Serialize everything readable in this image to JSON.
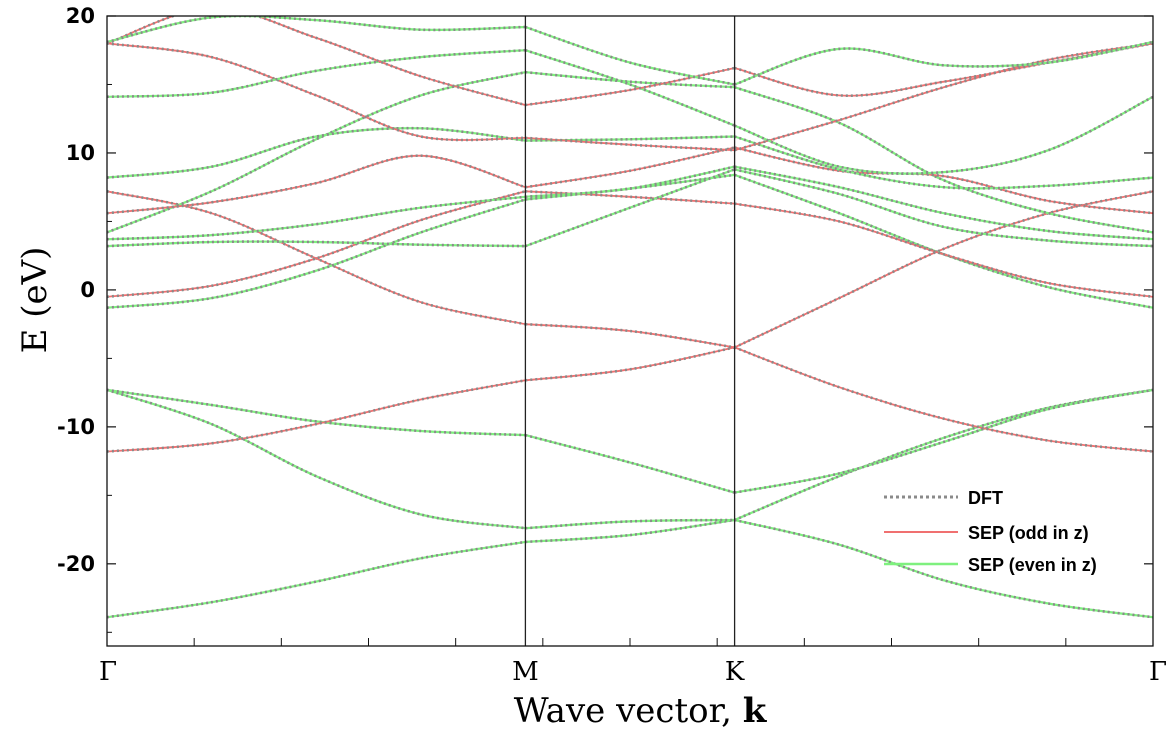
{
  "chart_data": {
    "type": "line",
    "xlabel": "Wave vector, ",
    "xlabel_bold": "k",
    "ylabel": "E (eV)",
    "ylim": [
      -26,
      20
    ],
    "yticks": [
      20,
      10,
      0,
      -10,
      -20
    ],
    "x_positions": [
      0,
      1,
      1.5,
      2.5
    ],
    "x_tick_labels": [
      "Γ",
      "M",
      "K",
      "Γ"
    ],
    "vertical_lines_at": [
      1,
      1.5
    ],
    "grid": false,
    "legend_position": "lower-right",
    "legend": [
      {
        "label": "DFT",
        "style": "dotted",
        "color": "#8a8a8a"
      },
      {
        "label": "SEP (odd in z)",
        "style": "solid",
        "color": "#f07070"
      },
      {
        "label": "SEP (even in  z)",
        "style": "solid",
        "color": "#7ef07e"
      }
    ],
    "series": [
      {
        "parity": "even",
        "x": [
          0,
          0.25,
          0.5,
          0.75,
          1
        ],
        "y": [
          -23.9,
          -22.8,
          -21.3,
          -19.6,
          -18.4
        ]
      },
      {
        "parity": "even",
        "x": [
          1,
          1.25,
          1.5
        ],
        "y": [
          -18.4,
          -17.9,
          -16.8
        ]
      },
      {
        "parity": "even",
        "x": [
          1.5,
          1.75,
          2,
          2.25,
          2.5
        ],
        "y": [
          -16.8,
          -18.6,
          -21.2,
          -22.9,
          -23.9
        ]
      },
      {
        "parity": "even",
        "x": [
          0,
          0.25,
          0.5,
          0.75,
          1
        ],
        "y": [
          -7.3,
          -9.8,
          -13.6,
          -16.4,
          -17.4
        ]
      },
      {
        "parity": "even",
        "x": [
          1,
          1.25,
          1.5
        ],
        "y": [
          -17.4,
          -16.9,
          -16.8
        ]
      },
      {
        "parity": "even",
        "x": [
          1.5,
          1.75,
          2,
          2.25,
          2.5
        ],
        "y": [
          -16.8,
          -13.6,
          -10.8,
          -8.6,
          -7.3
        ]
      },
      {
        "parity": "even",
        "x": [
          0,
          0.25,
          0.5,
          0.75,
          1
        ],
        "y": [
          -7.3,
          -8.4,
          -9.6,
          -10.3,
          -10.6
        ]
      },
      {
        "parity": "even",
        "x": [
          1,
          1.25,
          1.5
        ],
        "y": [
          -10.6,
          -12.6,
          -14.8
        ]
      },
      {
        "parity": "even",
        "x": [
          1.5,
          1.75,
          2,
          2.25,
          2.5
        ],
        "y": [
          -14.8,
          -13.4,
          -11.1,
          -8.7,
          -7.3
        ]
      },
      {
        "parity": "odd",
        "x": [
          0,
          0.25,
          0.5,
          0.75,
          1
        ],
        "y": [
          -11.8,
          -11.2,
          -9.8,
          -8.0,
          -6.6
        ]
      },
      {
        "parity": "odd",
        "x": [
          1,
          1.25,
          1.5
        ],
        "y": [
          -6.6,
          -5.8,
          -4.2
        ]
      },
      {
        "parity": "odd",
        "x": [
          1.5,
          1.75,
          2,
          2.25,
          2.5
        ],
        "y": [
          -4.2,
          -7.1,
          -9.4,
          -11.0,
          -11.8
        ]
      },
      {
        "parity": "odd",
        "x": [
          0,
          0.25,
          0.5,
          0.75,
          1
        ],
        "y": [
          7.2,
          5.6,
          2.3,
          -0.9,
          -2.5
        ]
      },
      {
        "parity": "odd",
        "x": [
          1,
          1.25,
          1.5
        ],
        "y": [
          -2.5,
          -3.0,
          -4.2
        ]
      },
      {
        "parity": "odd",
        "x": [
          1.5,
          1.75,
          2,
          2.25,
          2.5
        ],
        "y": [
          -4.2,
          -0.6,
          3.0,
          5.6,
          7.2
        ]
      },
      {
        "parity": "even",
        "x": [
          0,
          0.25,
          0.5,
          0.75,
          1
        ],
        "y": [
          -1.3,
          -0.6,
          1.4,
          4.2,
          6.6
        ]
      },
      {
        "parity": "even",
        "x": [
          1,
          1.25,
          1.5
        ],
        "y": [
          6.6,
          7.4,
          8.4
        ]
      },
      {
        "parity": "even",
        "x": [
          1.5,
          1.75,
          2,
          2.25,
          2.5
        ],
        "y": [
          8.4,
          5.6,
          2.6,
          0.2,
          -1.3
        ]
      },
      {
        "parity": "odd",
        "x": [
          0,
          0.25,
          0.5,
          0.75,
          1
        ],
        "y": [
          -0.5,
          0.3,
          2.3,
          5.1,
          7.2
        ]
      },
      {
        "parity": "odd",
        "x": [
          1,
          1.25,
          1.5
        ],
        "y": [
          7.2,
          6.8,
          6.3
        ]
      },
      {
        "parity": "odd",
        "x": [
          1.5,
          1.75,
          2,
          2.25,
          2.5
        ],
        "y": [
          6.3,
          5.0,
          2.6,
          0.5,
          -0.5
        ]
      },
      {
        "parity": "even",
        "x": [
          0,
          0.25,
          0.5,
          0.75,
          1
        ],
        "y": [
          3.2,
          3.5,
          3.5,
          3.3,
          3.2
        ]
      },
      {
        "parity": "even",
        "x": [
          1,
          1.25,
          1.5
        ],
        "y": [
          3.2,
          6.0,
          8.8
        ]
      },
      {
        "parity": "even",
        "x": [
          1.5,
          1.75,
          2,
          2.25,
          2.5
        ],
        "y": [
          8.8,
          7.0,
          4.6,
          3.6,
          3.2
        ]
      },
      {
        "parity": "even",
        "x": [
          0,
          0.25,
          0.5,
          0.75,
          1
        ],
        "y": [
          3.7,
          4.0,
          4.8,
          6.0,
          6.8
        ]
      },
      {
        "parity": "even",
        "x": [
          1,
          1.25,
          1.5
        ],
        "y": [
          6.8,
          7.4,
          9.0
        ]
      },
      {
        "parity": "even",
        "x": [
          1.5,
          1.75,
          2,
          2.25,
          2.5
        ],
        "y": [
          9.0,
          7.5,
          5.6,
          4.3,
          3.7
        ]
      },
      {
        "parity": "even",
        "x": [
          0,
          0.25,
          0.5,
          0.75,
          1
        ],
        "y": [
          4.2,
          7.2,
          11.0,
          14.2,
          15.9
        ]
      },
      {
        "parity": "even",
        "x": [
          1,
          1.25,
          1.5
        ],
        "y": [
          15.9,
          15.2,
          14.8
        ]
      },
      {
        "parity": "even",
        "x": [
          1.5,
          1.75,
          2,
          2.25,
          2.5
        ],
        "y": [
          14.8,
          12.2,
          8.0,
          5.6,
          4.2
        ]
      },
      {
        "parity": "odd",
        "x": [
          0,
          0.25,
          0.5,
          0.75,
          1
        ],
        "y": [
          5.6,
          6.4,
          7.8,
          9.8,
          7.5
        ]
      },
      {
        "parity": "odd",
        "x": [
          1,
          1.25,
          1.5
        ],
        "y": [
          7.5,
          8.7,
          10.4
        ]
      },
      {
        "parity": "odd",
        "x": [
          1.5,
          1.75,
          2,
          2.25,
          2.5
        ],
        "y": [
          10.4,
          8.7,
          8.3,
          6.5,
          5.6
        ]
      },
      {
        "parity": "even",
        "x": [
          0,
          0.25,
          0.5,
          0.75,
          1
        ],
        "y": [
          8.2,
          9.0,
          11.2,
          11.8,
          10.9
        ]
      },
      {
        "parity": "even",
        "x": [
          1,
          1.25,
          1.5
        ],
        "y": [
          10.9,
          11.0,
          11.2
        ]
      },
      {
        "parity": "even",
        "x": [
          1.5,
          1.75,
          2,
          2.25,
          2.5
        ],
        "y": [
          11.2,
          8.8,
          7.5,
          7.6,
          8.2
        ]
      },
      {
        "parity": "odd",
        "x": [
          0,
          0.25,
          0.5,
          0.75,
          1
        ],
        "y": [
          18.0,
          17.0,
          14.2,
          11.2,
          11.1
        ]
      },
      {
        "parity": "odd",
        "x": [
          1,
          1.25,
          1.5
        ],
        "y": [
          11.1,
          10.6,
          10.2
        ]
      },
      {
        "parity": "odd",
        "x": [
          1.5,
          1.75,
          2,
          2.25,
          2.5
        ],
        "y": [
          10.2,
          12.4,
          14.8,
          16.8,
          18.0
        ]
      },
      {
        "parity": "even",
        "x": [
          0,
          0.25,
          0.5,
          0.75,
          1
        ],
        "y": [
          14.1,
          14.4,
          16.0,
          17.0,
          17.5
        ]
      },
      {
        "parity": "even",
        "x": [
          1,
          1.25,
          1.5
        ],
        "y": [
          17.5,
          15.0,
          12.0
        ]
      },
      {
        "parity": "even",
        "x": [
          1.5,
          1.75,
          2,
          2.25,
          2.5
        ],
        "y": [
          12.0,
          9.0,
          8.6,
          10.2,
          14.1
        ]
      },
      {
        "parity": "odd",
        "x": [
          0,
          0.25,
          0.5,
          0.75,
          1
        ],
        "y": [
          18.0,
          20.6,
          18.4,
          15.6,
          13.5
        ]
      },
      {
        "parity": "odd",
        "x": [
          1,
          1.25,
          1.5
        ],
        "y": [
          13.5,
          14.6,
          16.2
        ]
      },
      {
        "parity": "odd",
        "x": [
          1.5,
          1.75,
          2,
          2.25,
          2.5
        ],
        "y": [
          16.2,
          14.2,
          15.2,
          16.6,
          18.0
        ]
      },
      {
        "parity": "even",
        "x": [
          0,
          0.25,
          0.5,
          0.75,
          1
        ],
        "y": [
          18.1,
          19.9,
          19.7,
          19.0,
          19.2
        ]
      },
      {
        "parity": "even",
        "x": [
          1,
          1.25,
          1.5
        ],
        "y": [
          19.2,
          16.6,
          15.0
        ]
      },
      {
        "parity": "even",
        "x": [
          1.5,
          1.75,
          2,
          2.25,
          2.5
        ],
        "y": [
          15.0,
          17.6,
          16.4,
          16.6,
          18.1
        ]
      }
    ]
  }
}
